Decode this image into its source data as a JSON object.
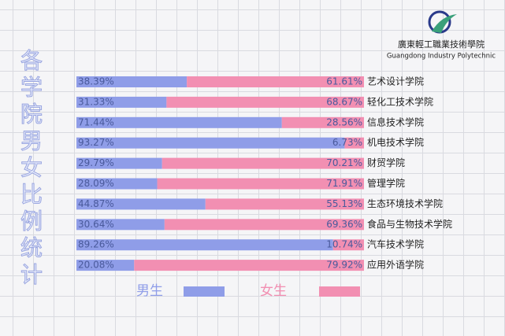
{
  "chart_data": {
    "type": "bar",
    "orientation": "horizontal",
    "stacked": true,
    "title": "各学院男女比例统计",
    "logo": {
      "name": "廣東輕工職業技術學院",
      "english": "Guangdong Industry Polytechnic"
    },
    "categories": [
      "艺术设计学院",
      "轻化工技术学院",
      "信息技术学院",
      "机电技术学院",
      "财贸学院",
      "管理学院",
      "生态环境技术学院",
      "食品与生物技术学院",
      "汽车技术学院",
      "应用外语学院"
    ],
    "series": [
      {
        "name": "男生",
        "color": "#8f9de8",
        "values": [
          38.39,
          31.33,
          71.44,
          93.27,
          29.79,
          28.09,
          44.87,
          30.64,
          89.26,
          20.08
        ],
        "value_labels": [
          "38.39%",
          "31.33%",
          "71.44%",
          "93.27%",
          "29.79%",
          "28.09%",
          "44.87%",
          "30.64%",
          "89.26%",
          "20.08%"
        ]
      },
      {
        "name": "女生",
        "color": "#f28fb2",
        "values": [
          61.61,
          68.67,
          28.56,
          6.73,
          70.21,
          71.91,
          55.13,
          69.36,
          10.74,
          79.92
        ],
        "value_labels": [
          "61.61%",
          "68.67%",
          "28.56%",
          "6.73%",
          "70.21%",
          "71.91%",
          "55.13%",
          "69.36%",
          "10.74%",
          "79.92%"
        ]
      }
    ],
    "xlim": [
      0,
      100
    ],
    "legend": "bottom"
  }
}
